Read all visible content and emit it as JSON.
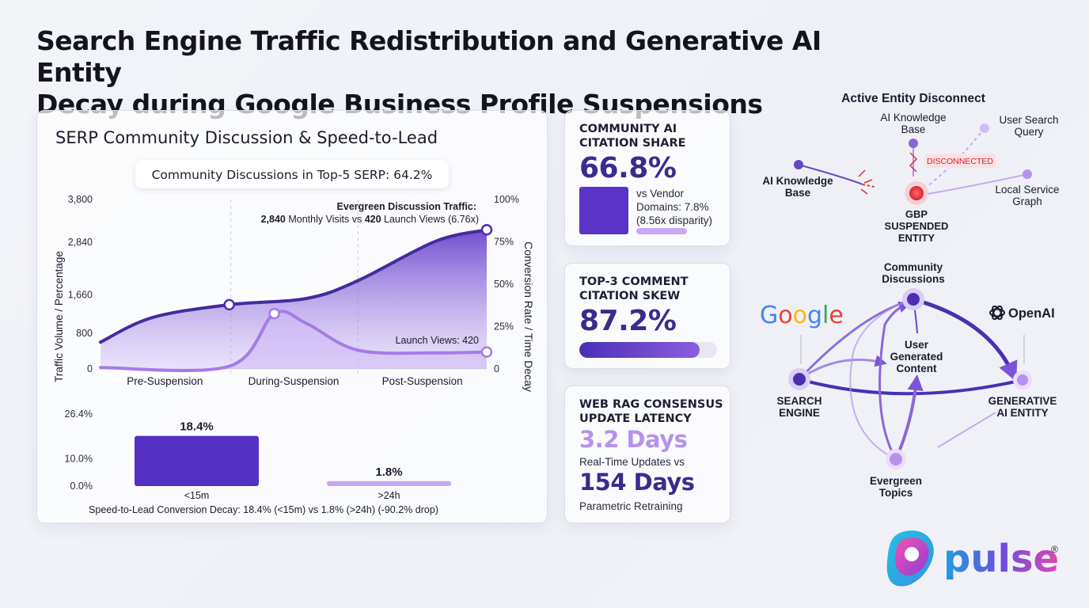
{
  "title_line1": "Search Engine Traffic Redistribution and Generative AI Entity",
  "title_line2": "Decay during Google Business Profile Suspensions",
  "main_panel": {
    "heading": "SERP Community Discussion & Speed-to-Lead",
    "badge": "Community Discussions in Top-5 SERP: 64.2%"
  },
  "chart_data": [
    {
      "type": "area",
      "categories": [
        "Pre-Suspension",
        "During-Suspension",
        "Post-Suspension"
      ],
      "ylabel": "Traffic Volume / Percentage",
      "ylabel_right": "Conversion Rate / Time Decay",
      "y_ticks": [
        "3,800",
        "2,840",
        "1,660",
        "800",
        "0"
      ],
      "y_right_ticks": [
        "100%",
        "75%",
        "50%",
        "25%",
        "0"
      ],
      "ylim": [
        0,
        3800
      ],
      "series": [
        {
          "values_x": [
            0,
            0.4,
            1.0,
            1.6,
            2.0,
            2.6,
            3.0
          ],
          "values_y": [
            600,
            1150,
            1440,
            1580,
            1980,
            2860,
            3120
          ]
        },
        {
          "values_x": [
            0,
            1.0,
            1.35,
            1.6,
            2.0,
            2.6,
            3.0
          ],
          "values_y": [
            30,
            60,
            1240,
            1020,
            420,
            360,
            380
          ]
        }
      ],
      "annotation_top_line1": "Evergreen Discussion Traffic:",
      "annotation_top_line2_a": "2,840",
      "annotation_top_line2_b": " Monthly Visits vs ",
      "annotation_top_line2_c": "420",
      "annotation_top_line2_d": " Launch Views (6.76x)",
      "annotation_bottom": "Launch Views: 420"
    },
    {
      "type": "bar",
      "categories": [
        "<15m",
        ">24h"
      ],
      "values": [
        18.4,
        1.8
      ],
      "value_labels": [
        "18.4%",
        "1.8%"
      ],
      "y_ticks": [
        "26.4%",
        "10.0%",
        "0.0%"
      ],
      "ylim": [
        0,
        26.4
      ],
      "caption": "Speed-to-Lead Conversion Decay: 18.4% (<15m) vs 1.8% (>24h) (-90.2% drop)"
    }
  ],
  "stats": {
    "community": {
      "label_line1": "COMMUNITY AI",
      "label_line2": "CITATION SHARE",
      "value": "66.8%",
      "note_line1": "vs Vendor",
      "note_line2": "Domains: 7.8%",
      "note_line3": "(8.56x disparity)",
      "fill": 0.668
    },
    "comment": {
      "label_line1": "TOP-3 COMMENT",
      "label_line2": "CITATION SKEW",
      "value": "87.2%",
      "fill": 0.872
    },
    "rag": {
      "label_line1": "WEB RAG CONSENSUS",
      "label_line2": "UPDATE LATENCY",
      "value1": "3.2 Days",
      "middle": "Real-Time Updates vs",
      "value2": "154 Days",
      "bottom": "Parametric Retraining"
    }
  },
  "diagram": {
    "title": "Active Entity Disconnect",
    "ai_kb_top_line1": "AI Knowledge",
    "ai_kb_top_line2": "Base",
    "user_search_line1": "User Search",
    "user_search_line2": "Query",
    "ai_kb_left_line1": "AI Knowledge",
    "ai_kb_left_line2": "Base",
    "local_service_line1": "Local Service",
    "local_service_line2": "Graph",
    "disconnected": "DISCONNECTED",
    "gbp_line1": "GBP",
    "gbp_line2": "SUSPENDED",
    "gbp_line3": "ENTITY",
    "community_line1": "Community",
    "community_line2": "Discussions",
    "ugc_line1": "User",
    "ugc_line2": "Generated",
    "ugc_line3": "Content",
    "google_logo": "Google",
    "openai_logo": "OpenAI",
    "search_line1": "SEARCH",
    "search_line2": "ENGINE",
    "genai_line1": "GENERATIVE",
    "genai_line2": "AI ENTITY",
    "evergreen_line1": "Evergreen",
    "evergreen_line2": "Topics"
  },
  "logo": {
    "text": "pulse",
    "mark": "®"
  },
  "colors": {
    "accent_dark": "#4a2fb5",
    "accent_light": "#b592ee",
    "red": "#e0303a"
  }
}
